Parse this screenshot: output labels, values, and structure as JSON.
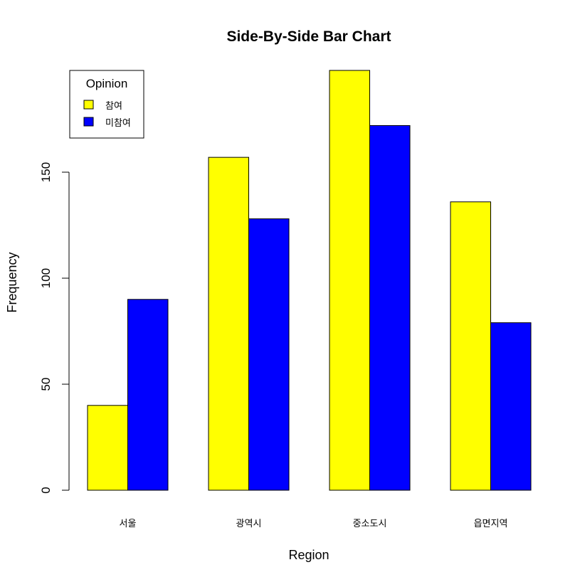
{
  "chart_data": {
    "type": "bar",
    "title": "Side-By-Side Bar Chart",
    "xlabel": "Region",
    "ylabel": "Frequency",
    "categories": [
      "서울",
      "광역시",
      "중소도시",
      "읍면지역"
    ],
    "series": [
      {
        "name": "참여",
        "color": "#FFFF00",
        "values": [
          40,
          157,
          198,
          136
        ]
      },
      {
        "name": "미참여",
        "color": "#0000FF",
        "values": [
          90,
          128,
          172,
          79
        ]
      }
    ],
    "yticks": [
      "0",
      "50",
      "100",
      "150"
    ],
    "ylim": [
      0,
      200
    ],
    "legend": {
      "title": "Opinion",
      "placement": "top-left"
    },
    "grid": false
  }
}
